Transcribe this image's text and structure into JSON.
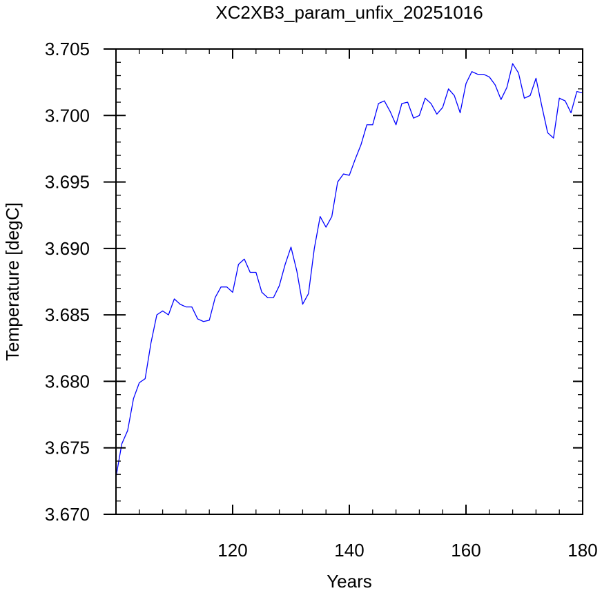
{
  "chart_data": {
    "type": "line",
    "title": "XC2XB3_param_unfix_20251016",
    "xlabel": "Years",
    "ylabel": "Temperature [degC]",
    "xlim": [
      100,
      180
    ],
    "ylim": [
      3.67,
      3.705
    ],
    "x_ticks": [
      120,
      140,
      160,
      180
    ],
    "x_tick_labels": [
      "120",
      "140",
      "160",
      "180"
    ],
    "x_minor_step": 4,
    "y_ticks": [
      3.67,
      3.675,
      3.68,
      3.685,
      3.69,
      3.695,
      3.7,
      3.705
    ],
    "y_tick_labels": [
      "3.670",
      "3.675",
      "3.680",
      "3.685",
      "3.690",
      "3.695",
      "3.700",
      "3.705"
    ],
    "y_minor_step": 0.001,
    "grid": false,
    "line_color": "#0000ff",
    "series": [
      {
        "x": [
          100,
          101,
          102,
          103,
          104,
          105,
          106,
          107,
          108,
          109,
          110,
          111,
          112,
          113,
          114,
          115,
          116,
          117,
          118,
          119,
          120,
          121,
          122,
          123,
          124,
          125,
          126,
          127,
          128,
          129,
          130,
          131,
          132,
          133,
          134,
          135,
          136,
          137,
          138,
          139,
          140,
          141,
          142,
          143,
          144,
          145,
          146,
          147,
          148,
          149,
          150,
          151,
          152,
          153,
          154,
          155,
          156,
          157,
          158,
          159,
          160,
          161,
          162,
          163,
          164,
          165,
          166,
          167,
          168,
          169,
          170,
          171,
          172,
          173,
          174,
          175,
          176,
          177,
          178,
          179,
          180
        ],
        "y": [
          3.6728,
          3.6753,
          3.6763,
          3.6787,
          3.6799,
          3.6802,
          3.6829,
          3.685,
          3.6853,
          3.685,
          3.6862,
          3.6858,
          3.6856,
          3.6856,
          3.6847,
          3.6845,
          3.6846,
          3.6863,
          3.6871,
          3.6871,
          3.6867,
          3.6888,
          3.6892,
          3.6882,
          3.6882,
          3.6867,
          3.6863,
          3.6863,
          3.6872,
          3.6888,
          3.6901,
          3.6883,
          3.6858,
          3.6866,
          3.69,
          3.6924,
          3.6916,
          3.6924,
          3.695,
          3.6956,
          3.6955,
          3.6967,
          3.6978,
          3.6993,
          3.6993,
          3.7009,
          3.7011,
          3.7003,
          3.6993,
          3.7009,
          3.701,
          3.6998,
          3.7,
          3.7013,
          3.7009,
          3.7001,
          3.7006,
          3.702,
          3.7015,
          3.7002,
          3.7024,
          3.7033,
          3.7031,
          3.7031,
          3.7029,
          3.7023,
          3.7012,
          3.7021,
          3.7039,
          3.7032,
          3.7013,
          3.7015,
          3.7028,
          3.7007,
          3.6987,
          3.6983,
          3.7013,
          3.7011,
          3.7002,
          3.7018,
          3.7017
        ]
      }
    ]
  }
}
